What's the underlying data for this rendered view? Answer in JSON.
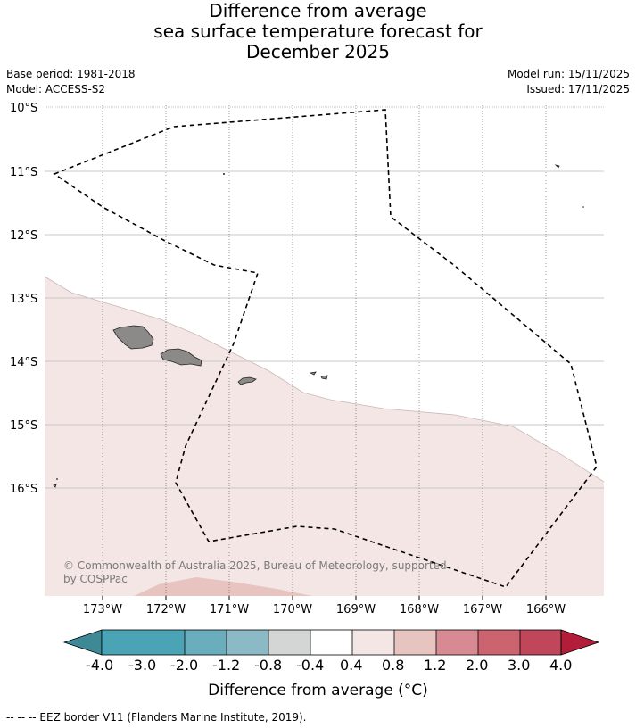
{
  "title": {
    "line1": "Difference from average",
    "line2": "sea surface temperature forecast for",
    "line3": "December 2025"
  },
  "meta": {
    "base_period": "Base period: 1981-2018",
    "model": "Model: ACCESS-S2",
    "model_run": "Model run: 15/11/2025",
    "issued": "Issued: 17/11/2025"
  },
  "map": {
    "lat_labels": [
      "10°S",
      "11°S",
      "12°S",
      "13°S",
      "14°S",
      "15°S",
      "16°S"
    ],
    "lon_labels": [
      "173°W",
      "172°W",
      "171°W",
      "170°W",
      "169°W",
      "168°W",
      "167°W",
      "166°W"
    ],
    "copyright": "© Commonwealth of Australia 2025, Bureau of Meteorology, supported",
    "copyright_line2": "by COSPPac",
    "colors": {
      "anomaly_0_4_to_0_8": "#f4e6e5",
      "anomaly_0_8_to_1_2": "#e8c4c0",
      "land": "#8c8a88",
      "eez_border": "#000000"
    }
  },
  "colorbar": {
    "tick_labels": [
      "-4.0",
      "-3.0",
      "-2.0",
      "-1.2",
      "-0.8",
      "-0.4",
      "0.4",
      "0.8",
      "1.2",
      "2.0",
      "3.0",
      "4.0"
    ],
    "colors": [
      "#3d8a96",
      "#4aa4b5",
      "#6aaebe",
      "#8bb9c5",
      "#a9c7cb",
      "#d4d6d6",
      "#ffffff",
      "#f4e6e5",
      "#e8c4c0",
      "#d88a92",
      "#cc6470",
      "#c0475a",
      "#b21e3a"
    ],
    "label": "Difference from average (°C)"
  },
  "footnote": "--  --  -- EEZ border V11 (Flanders Marine Institute, 2019)."
}
